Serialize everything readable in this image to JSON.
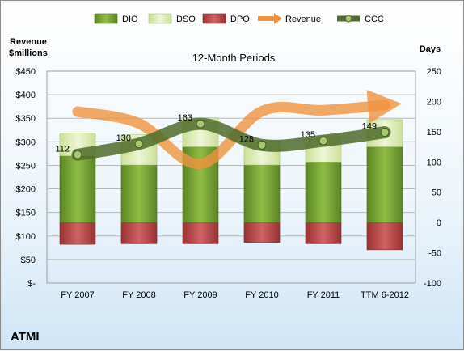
{
  "chart_data": {
    "type": "bar",
    "title": "12-Month Periods",
    "company": "ATMI",
    "left_axis_title": "Revenue\n$millions",
    "right_axis_title": "Days",
    "categories": [
      "FY 2007",
      "FY 2008",
      "FY 2009",
      "FY 2010",
      "FY 2011",
      "TTM 6-2012"
    ],
    "left_axis": {
      "min": 0,
      "max": 450,
      "step": 50,
      "tick_labels": [
        "$-",
        "$50",
        "$100",
        "$150",
        "$200",
        "$250",
        "$300",
        "$350",
        "$400",
        "$450"
      ]
    },
    "right_axis": {
      "min": -100,
      "max": 250,
      "step": 50,
      "tick_labels": [
        "-100",
        "-50",
        "0",
        "50",
        "100",
        "150",
        "200",
        "250"
      ]
    },
    "legend": [
      "DIO",
      "DSO",
      "DPO",
      "Revenue",
      "CCC"
    ],
    "legend_position": "top",
    "series": [
      {
        "name": "DIO",
        "axis": "right",
        "kind": "stacked-bar",
        "values": [
          110,
          95,
          125,
          95,
          100,
          125
        ],
        "color": "#6e9a2e"
      },
      {
        "name": "DSO",
        "axis": "right",
        "kind": "stacked-bar",
        "values": [
          38,
          50,
          48,
          40,
          42,
          45
        ],
        "color": "#d8eaa8"
      },
      {
        "name": "DPO",
        "axis": "right",
        "kind": "negative-bar",
        "values": [
          -36,
          -35,
          -35,
          -33,
          -35,
          -45
        ],
        "color": "#b84a4a"
      },
      {
        "name": "Revenue",
        "axis": "left",
        "kind": "line",
        "values": [
          364,
          339,
          253,
          365,
          367,
          378
        ],
        "color": "#f0943e"
      },
      {
        "name": "CCC",
        "axis": "right",
        "kind": "line",
        "values": [
          112,
          130,
          163,
          128,
          135,
          149
        ],
        "color": "#4e6c2a"
      }
    ],
    "ccc_labels": [
      "112",
      "130",
      "163",
      "128",
      "135",
      "149"
    ]
  }
}
